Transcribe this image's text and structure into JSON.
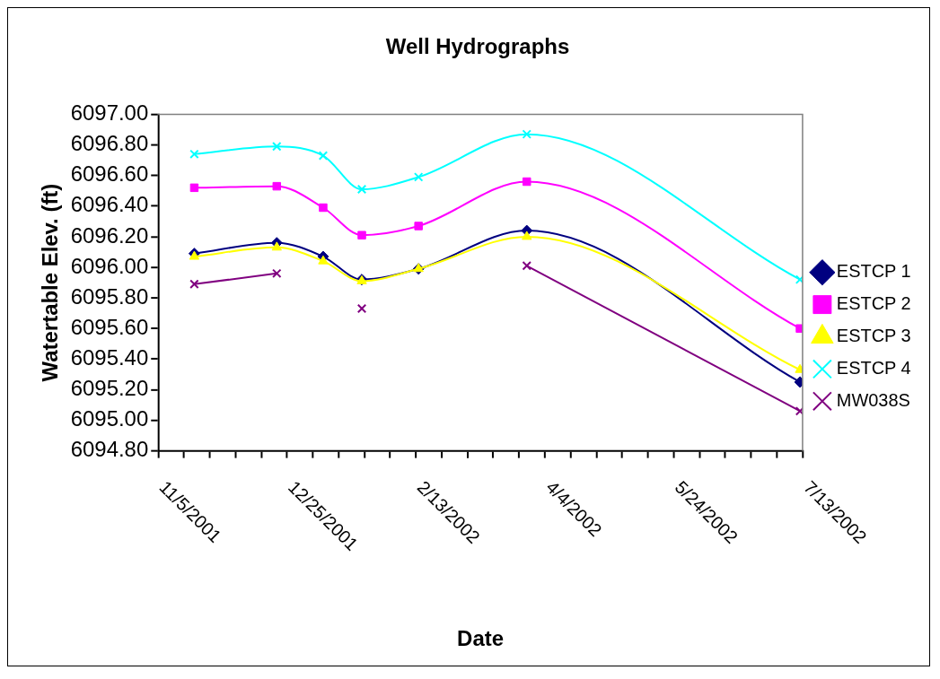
{
  "chart_data": {
    "type": "line",
    "title": "Well Hydrographs",
    "xlabel": "Date",
    "ylabel": "Watertable Elev. (ft)",
    "x": [
      "2001-11-19",
      "2001-12-21",
      "2002-01-08",
      "2002-01-23",
      "2002-02-14",
      "2002-03-28",
      "2002-07-12"
    ],
    "series": [
      {
        "name": "ESTCP 1",
        "color": "#000080",
        "marker": "diamond",
        "values": [
          6096.09,
          6096.16,
          6096.07,
          6095.92,
          6095.99,
          6096.24,
          6095.25
        ]
      },
      {
        "name": "ESTCP 2",
        "color": "#ff00ff",
        "marker": "square",
        "values": [
          6096.52,
          6096.53,
          6096.39,
          6096.21,
          6096.27,
          6096.56,
          6095.6
        ]
      },
      {
        "name": "ESTCP 3",
        "color": "#ffff00",
        "marker": "triangle",
        "values": [
          6096.07,
          6096.13,
          6096.04,
          6095.91,
          6095.99,
          6096.2,
          6095.33
        ]
      },
      {
        "name": "ESTCP 4",
        "color": "#00ffff",
        "marker": "cross",
        "values": [
          6096.74,
          6096.79,
          6096.73,
          6096.51,
          6096.59,
          6096.87,
          6095.92
        ]
      },
      {
        "name": "MW038S",
        "color": "#800080",
        "marker": "cross",
        "values": [
          6095.89,
          6095.96,
          null,
          6095.73,
          null,
          6096.01,
          6095.06
        ]
      }
    ],
    "xlim": [
      "2001-11-05",
      "2002-07-13"
    ],
    "xticks": [
      {
        "value": "2001-11-05",
        "label": "11/5/2001"
      },
      {
        "value": "2001-11-15",
        "label": null
      },
      {
        "value": "2001-11-25",
        "label": null
      },
      {
        "value": "2001-12-05",
        "label": null
      },
      {
        "value": "2001-12-15",
        "label": null
      },
      {
        "value": "2001-12-25",
        "label": "12/25/2001"
      },
      {
        "value": "2002-01-04",
        "label": null
      },
      {
        "value": "2002-01-14",
        "label": null
      },
      {
        "value": "2002-01-24",
        "label": null
      },
      {
        "value": "2002-02-03",
        "label": null
      },
      {
        "value": "2002-02-13",
        "label": "2/13/2002"
      },
      {
        "value": "2002-02-23",
        "label": null
      },
      {
        "value": "2002-03-05",
        "label": null
      },
      {
        "value": "2002-03-15",
        "label": null
      },
      {
        "value": "2002-03-25",
        "label": null
      },
      {
        "value": "2002-04-04",
        "label": "4/4/2002"
      },
      {
        "value": "2002-04-14",
        "label": null
      },
      {
        "value": "2002-04-24",
        "label": null
      },
      {
        "value": "2002-05-04",
        "label": null
      },
      {
        "value": "2002-05-14",
        "label": null
      },
      {
        "value": "2002-05-24",
        "label": "5/24/2002"
      },
      {
        "value": "2002-06-03",
        "label": null
      },
      {
        "value": "2002-06-13",
        "label": null
      },
      {
        "value": "2002-06-23",
        "label": null
      },
      {
        "value": "2002-07-03",
        "label": null
      },
      {
        "value": "2002-07-13",
        "label": "7/13/2002"
      }
    ],
    "ylim": [
      6094.8,
      6097.0
    ],
    "yticks": [
      {
        "value": 6094.8,
        "label": "6094.80"
      },
      {
        "value": 6095.0,
        "label": "6095.00"
      },
      {
        "value": 6095.2,
        "label": "6095.20"
      },
      {
        "value": 6095.4,
        "label": "6095.40"
      },
      {
        "value": 6095.6,
        "label": "6095.60"
      },
      {
        "value": 6095.8,
        "label": "6095.80"
      },
      {
        "value": 6096.0,
        "label": "6096.00"
      },
      {
        "value": 6096.2,
        "label": "6096.20"
      },
      {
        "value": 6096.4,
        "label": "6096.40"
      },
      {
        "value": 6096.6,
        "label": "6096.60"
      },
      {
        "value": 6096.8,
        "label": "6096.80"
      },
      {
        "value": 6097.0,
        "label": "6097.00"
      }
    ],
    "grid": false,
    "legend": "right"
  }
}
